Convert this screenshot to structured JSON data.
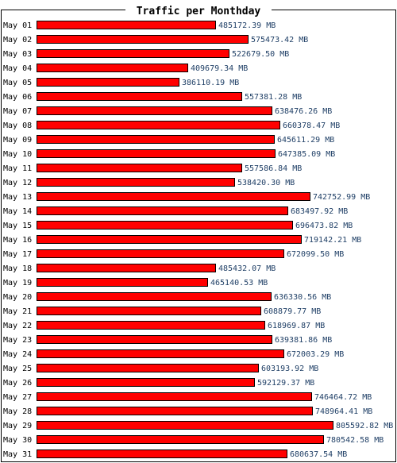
{
  "chart_data": {
    "type": "bar",
    "orientation": "horizontal",
    "title": "Traffic per Monthday",
    "unit": "MB",
    "grid": false,
    "colors": {
      "bar": "#ff0000",
      "bar_border": "#000000",
      "value_text": "#1f3f66",
      "frame": "#000000"
    },
    "categories": [
      "May 01",
      "May 02",
      "May 03",
      "May 04",
      "May 05",
      "May 06",
      "May 07",
      "May 08",
      "May 09",
      "May 10",
      "May 11",
      "May 12",
      "May 13",
      "May 14",
      "May 15",
      "May 16",
      "May 17",
      "May 18",
      "May 19",
      "May 20",
      "May 21",
      "May 22",
      "May 23",
      "May 24",
      "May 25",
      "May 26",
      "May 27",
      "May 28",
      "May 29",
      "May 30",
      "May 31"
    ],
    "values": [
      485172.39,
      575473.42,
      522679.5,
      409679.34,
      386110.19,
      557381.28,
      638476.26,
      660378.47,
      645611.29,
      647385.09,
      557586.84,
      538420.3,
      742752.99,
      683497.92,
      696473.82,
      719142.21,
      672099.5,
      485432.07,
      465140.53,
      636330.56,
      608879.77,
      618969.87,
      639381.86,
      672003.29,
      603193.92,
      592129.37,
      746464.72,
      748964.41,
      805592.82,
      780542.58,
      680637.54
    ],
    "value_labels": [
      "485172.39 MB",
      "575473.42 MB",
      "522679.50 MB",
      "409679.34 MB",
      "386110.19 MB",
      "557381.28 MB",
      "638476.26 MB",
      "660378.47 MB",
      "645611.29 MB",
      "647385.09 MB",
      "557586.84 MB",
      "538420.30 MB",
      "742752.99 MB",
      "683497.92 MB",
      "696473.82 MB",
      "719142.21 MB",
      "672099.50 MB",
      "485432.07 MB",
      "465140.53 MB",
      "636330.56 MB",
      "608879.77 MB",
      "618969.87 MB",
      "639381.86 MB",
      "672003.29 MB",
      "603193.92 MB",
      "592129.37 MB",
      "746464.72 MB",
      "748964.41 MB",
      "805592.82 MB",
      "780542.58 MB",
      "680637.54 MB"
    ]
  }
}
